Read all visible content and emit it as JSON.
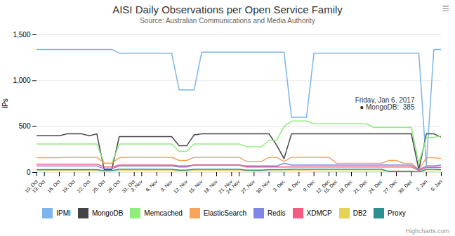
{
  "chart_data": {
    "type": "line",
    "title": "AISI Daily Observations per Open Service Family",
    "subtitle": "Source: Australian Communications and Media Authority",
    "ylabel": "IPs",
    "ylim": [
      0,
      1500
    ],
    "yticks": [
      0,
      500,
      1000,
      1500
    ],
    "grid": true,
    "legend": "bottom",
    "categories": [
      "10. Oct",
      "13. Oct",
      null,
      "16. Oct",
      null,
      "19. Oct",
      null,
      "22. Oct",
      null,
      "25. Oct",
      null,
      "28. Oct",
      null,
      "31. Oct",
      "3. Nov",
      null,
      "6. Nov",
      null,
      "9. Nov",
      null,
      "12. Nov",
      null,
      "15. Nov",
      null,
      "18. Nov",
      null,
      "21. Nov",
      "24. Nov",
      null,
      "27. Nov",
      null,
      "30. Nov",
      null,
      "3. Dec",
      null,
      "6. Dec",
      null,
      "9. Dec",
      null,
      "12. Dec",
      "15. Dec",
      null,
      "18. Dec",
      null,
      "21. Dec",
      null,
      "24. Dec",
      null,
      "27. Dec",
      null,
      "30. Dec",
      null,
      "2. Jan",
      null,
      "5. Jan"
    ],
    "series": [
      {
        "name": "IPMI",
        "color": "#7cb5ec",
        "values": [
          1340,
          1340,
          1340,
          1340,
          1340,
          1340,
          1340,
          1340,
          1340,
          1340,
          1340,
          1300,
          1300,
          1300,
          1300,
          1300,
          1300,
          1300,
          1300,
          900,
          900,
          900,
          1310,
          1310,
          1310,
          1310,
          1310,
          1310,
          1310,
          1310,
          1310,
          1310,
          1310,
          1310,
          600,
          600,
          600,
          1300,
          1300,
          1300,
          1300,
          1300,
          1300,
          1300,
          1300,
          1300,
          1300,
          1300,
          1300,
          1300,
          1300,
          1300,
          80,
          1340,
          1340
        ]
      },
      {
        "name": "MongoDB",
        "color": "#434348",
        "values": [
          400,
          400,
          400,
          400,
          420,
          420,
          420,
          400,
          420,
          30,
          30,
          390,
          390,
          390,
          390,
          390,
          390,
          390,
          390,
          290,
          290,
          410,
          420,
          420,
          420,
          420,
          420,
          420,
          420,
          420,
          420,
          420,
          300,
          150,
          420,
          420,
          420,
          420,
          420,
          420,
          420,
          420,
          420,
          420,
          420,
          420,
          420,
          420,
          420,
          420,
          420,
          30,
          420,
          420,
          385
        ]
      },
      {
        "name": "Memcached",
        "color": "#90ed7d",
        "values": [
          310,
          310,
          310,
          310,
          310,
          310,
          310,
          310,
          310,
          100,
          100,
          310,
          310,
          310,
          310,
          310,
          310,
          310,
          310,
          230,
          230,
          310,
          310,
          310,
          310,
          310,
          310,
          310,
          280,
          280,
          280,
          350,
          350,
          500,
          560,
          560,
          560,
          530,
          530,
          530,
          530,
          530,
          530,
          530,
          530,
          490,
          490,
          490,
          490,
          490,
          490,
          100,
          380,
          380,
          400
        ]
      },
      {
        "name": "ElasticSearch",
        "color": "#f7a35c",
        "values": [
          160,
          160,
          160,
          160,
          165,
          165,
          165,
          165,
          165,
          100,
          100,
          160,
          165,
          165,
          165,
          165,
          165,
          165,
          165,
          130,
          130,
          165,
          165,
          165,
          165,
          165,
          165,
          165,
          120,
          120,
          120,
          165,
          165,
          120,
          165,
          165,
          165,
          165,
          165,
          165,
          100,
          100,
          100,
          100,
          100,
          100,
          100,
          130,
          130,
          100,
          100,
          30,
          160,
          160,
          150
        ]
      },
      {
        "name": "Redis",
        "color": "#8085e9",
        "values": [
          70,
          70,
          70,
          70,
          70,
          70,
          70,
          70,
          70,
          40,
          40,
          70,
          70,
          70,
          70,
          70,
          70,
          70,
          70,
          60,
          60,
          80,
          80,
          80,
          80,
          80,
          80,
          80,
          70,
          70,
          70,
          70,
          70,
          100,
          80,
          80,
          80,
          80,
          80,
          80,
          80,
          80,
          80,
          80,
          80,
          80,
          80,
          80,
          80,
          80,
          80,
          30,
          70,
          70,
          80
        ]
      },
      {
        "name": "XDMCP",
        "color": "#f15c80",
        "values": [
          90,
          90,
          90,
          90,
          90,
          90,
          90,
          90,
          90,
          60,
          60,
          80,
          80,
          80,
          80,
          80,
          80,
          80,
          80,
          70,
          70,
          80,
          80,
          80,
          80,
          80,
          80,
          80,
          60,
          60,
          60,
          60,
          60,
          60,
          60,
          60,
          60,
          60,
          60,
          60,
          60,
          60,
          60,
          60,
          60,
          60,
          60,
          60,
          60,
          60,
          60,
          20,
          55,
          55,
          55
        ]
      },
      {
        "name": "DB2",
        "color": "#e4d354",
        "values": [
          20,
          20,
          20,
          20,
          20,
          20,
          20,
          20,
          20,
          15,
          15,
          20,
          20,
          20,
          20,
          20,
          20,
          20,
          20,
          15,
          15,
          20,
          20,
          20,
          20,
          20,
          20,
          20,
          15,
          15,
          15,
          15,
          15,
          15,
          20,
          20,
          20,
          15,
          15,
          15,
          15,
          15,
          15,
          15,
          15,
          15,
          15,
          15,
          15,
          15,
          15,
          8,
          15,
          15,
          15
        ]
      },
      {
        "name": "Proxy",
        "color": "#2b908f",
        "values": [
          30,
          30,
          30,
          30,
          30,
          30,
          30,
          30,
          30,
          20,
          20,
          35,
          35,
          35,
          35,
          35,
          35,
          35,
          35,
          25,
          25,
          35,
          35,
          35,
          35,
          35,
          35,
          35,
          25,
          25,
          25,
          30,
          30,
          30,
          35,
          35,
          35,
          35,
          35,
          35,
          35,
          35,
          35,
          35,
          35,
          35,
          35,
          10,
          10,
          10,
          10,
          5,
          35,
          35,
          30
        ]
      }
    ],
    "annotations": [
      {
        "text": "Friday, Jan 6, 2017\n● MongoDB:  385",
        "x": 51,
        "y": 750
      },
      {
        "text": "Highcharts.com"
      },
      {
        "text": "≡"
      }
    ]
  }
}
